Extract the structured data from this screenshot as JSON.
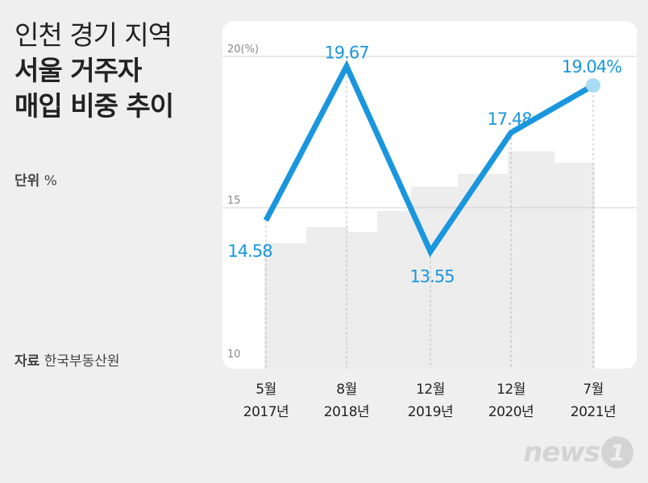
{
  "title": {
    "line1": "인천 경기 지역",
    "line2": "서울 거주자",
    "line3": "매입 비중 추이"
  },
  "unit": {
    "label": "단위",
    "value": "%"
  },
  "source": {
    "label": "자료",
    "value": "한국부동산원"
  },
  "logo": {
    "word": "news",
    "mark": "1"
  },
  "colors": {
    "line": "#1a96de",
    "panel": "#ffffff",
    "background": "#efefef",
    "grid": "#d0d0d0"
  },
  "chart_data": {
    "type": "line",
    "x": [
      {
        "month": "5월",
        "year": "2017년"
      },
      {
        "month": "8월",
        "year": "2018년"
      },
      {
        "month": "12월",
        "year": "2019년"
      },
      {
        "month": "12월",
        "year": "2020년"
      },
      {
        "month": "7월",
        "year": "2021년"
      }
    ],
    "values": [
      14.58,
      19.67,
      13.55,
      17.48,
      19.04
    ],
    "data_labels": [
      "14.58",
      "19.67",
      "13.55",
      "17.48",
      "19.04%"
    ],
    "y_ticks": [
      {
        "value": 20,
        "label": "20(%)"
      },
      {
        "value": 15,
        "label": "15"
      },
      {
        "value": 10,
        "label": "10"
      }
    ],
    "ylim": [
      10,
      20
    ],
    "grid": true,
    "highlight_last_point": true
  }
}
